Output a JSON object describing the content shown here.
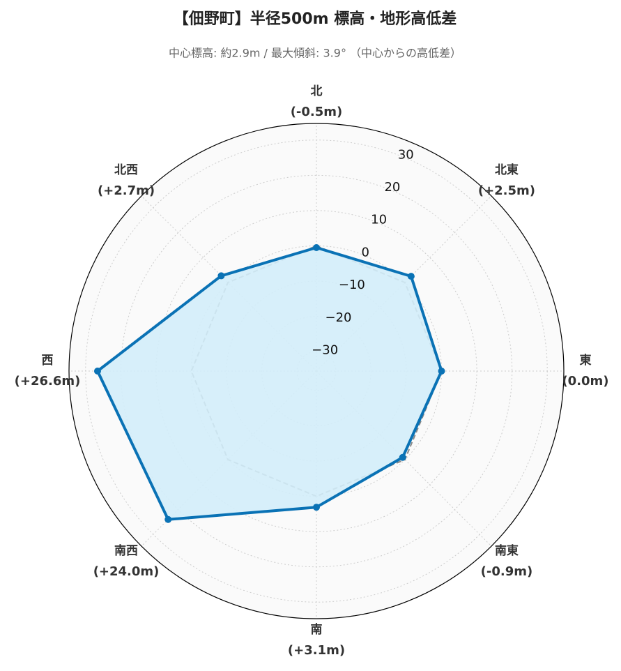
{
  "chart_data": {
    "type": "radar",
    "title": "【佃野町】半径500m 標高・地形高低差",
    "subtitle": "中心標高: 約2.9m / 最大傾斜: 3.9° （中心からの高低差）",
    "categories": [
      "北",
      "北東",
      "東",
      "南東",
      "南",
      "南西",
      "西",
      "北西"
    ],
    "values": [
      -0.5,
      2.5,
      0.0,
      -0.9,
      3.1,
      24.0,
      26.6,
      2.7
    ],
    "value_labels": [
      "(-0.5m)",
      "(+2.5m)",
      "(0.0m)",
      "(-0.9m)",
      "(+3.1m)",
      "(+24.0m)",
      "(+26.6m)",
      "(+2.7m)"
    ],
    "color": "#0a72b5",
    "fill_color": "#d3edf9",
    "reference_value": 0,
    "reference_color": "#888888",
    "ylim": [
      -35.5,
      34.7
    ],
    "yticks": [
      {
        "value": -30,
        "label": "−30"
      },
      {
        "value": -20,
        "label": "−20"
      },
      {
        "value": -10,
        "label": "−10"
      },
      0,
      10,
      20,
      30
    ],
    "grid": true
  }
}
